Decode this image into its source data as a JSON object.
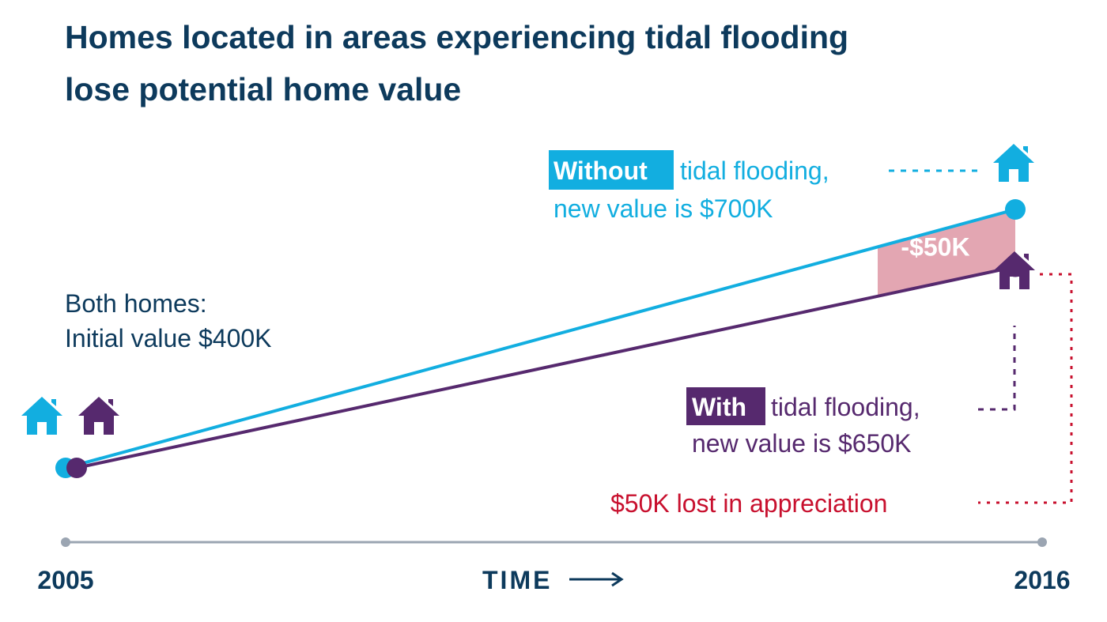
{
  "title_lines": [
    "Homes located in areas experiencing tidal flooding",
    "lose potential home value"
  ],
  "colors": {
    "title": "#0d3a5c",
    "without": "#12aee0",
    "with": "#56296e",
    "loss": "#c8102e",
    "loss_fill": "#e3a6b2",
    "axis": "#9ba5b2"
  },
  "annotations": {
    "initial_line1": "Both homes:",
    "initial_line2": "Initial value $400K",
    "without_highlight": "Without",
    "without_rest": "tidal flooding,",
    "without_line2": "new value is $700K",
    "with_highlight": "With",
    "with_rest": "tidal flooding,",
    "with_line2": "new value is $650K",
    "loss_label": "-$50K",
    "lost_appreciation": "$50K lost in appreciation"
  },
  "axis": {
    "left": "2005",
    "center": "TIME",
    "right": "2016",
    "center_arrow": "⟶"
  },
  "icons": [
    "house-icon-without-2005",
    "house-icon-with-2005",
    "house-icon-without-2016",
    "house-icon-with-2016"
  ],
  "chart_data": {
    "type": "line",
    "x": [
      2005,
      2016
    ],
    "series": [
      {
        "name": "Without tidal flooding",
        "values": [
          400,
          700
        ]
      },
      {
        "name": "With tidal flooding",
        "values": [
          400,
          650
        ]
      }
    ],
    "gap": {
      "value": 50
    },
    "xlabel": "TIME",
    "yunit": "$K"
  }
}
